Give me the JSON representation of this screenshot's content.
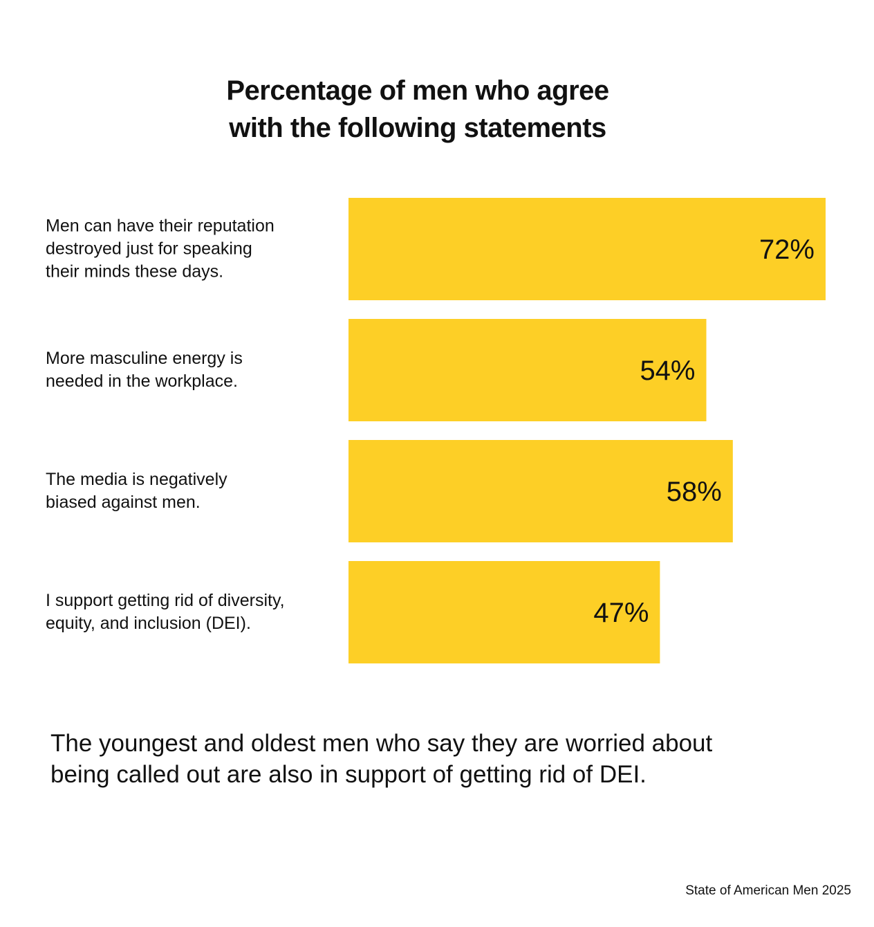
{
  "chart_data": {
    "type": "bar",
    "orientation": "horizontal",
    "title_lines": [
      "Percentage of men who agree",
      "with the following statements"
    ],
    "categories": [
      [
        "Men can have their reputation",
        "destroyed just for speaking",
        "their minds these days."
      ],
      [
        "More masculine energy is",
        "needed in the workplace."
      ],
      [
        "The media is negatively",
        "biased against men."
      ],
      [
        "I support getting rid of diversity,",
        "equity, and inclusion (DEI)."
      ]
    ],
    "values": [
      72,
      54,
      58,
      47
    ],
    "value_labels": [
      "72%",
      "54%",
      "58%",
      "47%"
    ],
    "unit": "%",
    "xlim": [
      0,
      72
    ],
    "bar_color": "#FDCF26",
    "grid": false,
    "legend": "none"
  },
  "caption_lines": [
    "The youngest and oldest men who say they are worried about",
    "being called out are also in support of getting rid of DEI."
  ],
  "source": "State of American Men 2025"
}
